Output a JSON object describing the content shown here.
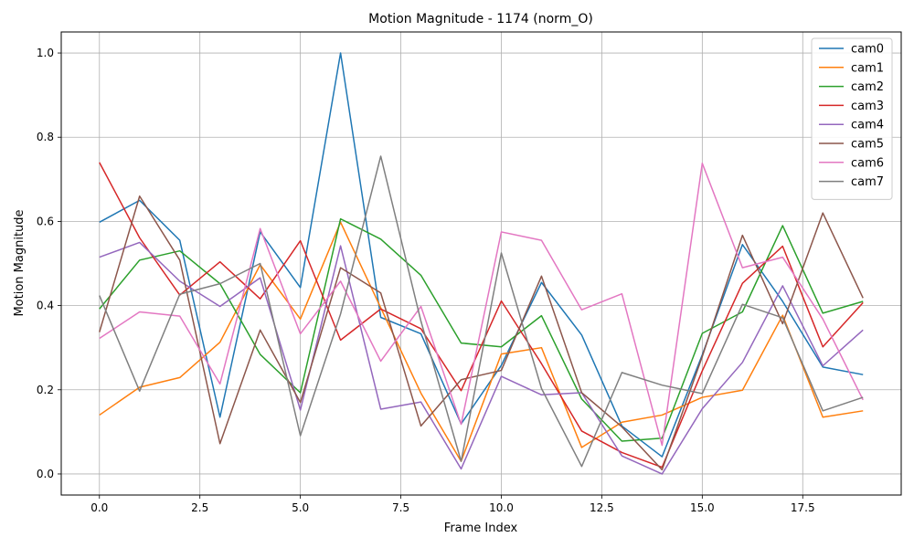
{
  "chart_data": {
    "type": "line",
    "title": "Motion Magnitude - 1174 (norm_O)",
    "xlabel": "Frame Index",
    "ylabel": "Motion Magnitude",
    "xlim": [
      -0.95,
      19.95
    ],
    "ylim": [
      -0.05,
      1.05
    ],
    "grid": true,
    "legend_position": "top-right",
    "x": [
      0,
      1,
      2,
      3,
      4,
      5,
      6,
      7,
      8,
      9,
      10,
      11,
      12,
      13,
      14,
      15,
      16,
      17,
      18,
      19
    ],
    "x_ticks": [
      0,
      2.5,
      5,
      7.5,
      10,
      12.5,
      15,
      17.5
    ],
    "x_tick_labels": [
      "0.0",
      "2.5",
      "5.0",
      "7.5",
      "10.0",
      "12.5",
      "15.0",
      "17.5"
    ],
    "y_ticks": [
      0,
      0.2,
      0.4,
      0.6,
      0.8,
      1.0
    ],
    "y_tick_labels": [
      "0.0",
      "0.2",
      "0.4",
      "0.6",
      "0.8",
      "1.0"
    ],
    "series": [
      {
        "name": "cam0",
        "color": "#1f77b4",
        "values": [
          0.598,
          0.65,
          0.555,
          0.135,
          0.575,
          0.443,
          1.0,
          0.372,
          0.333,
          0.119,
          0.258,
          0.455,
          0.33,
          0.114,
          0.041,
          0.283,
          0.545,
          0.41,
          0.254,
          0.236
        ]
      },
      {
        "name": "cam1",
        "color": "#ff7f0e",
        "values": [
          0.14,
          0.206,
          0.229,
          0.313,
          0.497,
          0.368,
          0.598,
          0.395,
          0.192,
          0.03,
          0.285,
          0.3,
          0.063,
          0.123,
          0.14,
          0.182,
          0.199,
          0.377,
          0.135,
          0.15
        ]
      },
      {
        "name": "cam2",
        "color": "#2ca02c",
        "values": [
          0.392,
          0.508,
          0.53,
          0.452,
          0.284,
          0.193,
          0.606,
          0.558,
          0.472,
          0.311,
          0.302,
          0.376,
          0.178,
          0.078,
          0.085,
          0.334,
          0.385,
          0.59,
          0.382,
          0.41
        ]
      },
      {
        "name": "cam3",
        "color": "#d62728",
        "values": [
          0.74,
          0.561,
          0.425,
          0.504,
          0.416,
          0.554,
          0.318,
          0.392,
          0.345,
          0.198,
          0.411,
          0.262,
          0.102,
          0.051,
          0.016,
          0.245,
          0.453,
          0.541,
          0.302,
          0.407
        ]
      },
      {
        "name": "cam4",
        "color": "#9467bd",
        "values": [
          0.515,
          0.55,
          0.458,
          0.398,
          0.466,
          0.152,
          0.542,
          0.154,
          0.171,
          0.012,
          0.232,
          0.188,
          0.193,
          0.043,
          0.0,
          0.155,
          0.265,
          0.447,
          0.257,
          0.342
        ]
      },
      {
        "name": "cam5",
        "color": "#8c564b",
        "values": [
          0.337,
          0.66,
          0.508,
          0.072,
          0.342,
          0.17,
          0.49,
          0.43,
          0.114,
          0.224,
          0.246,
          0.47,
          0.193,
          0.112,
          0.01,
          0.279,
          0.567,
          0.357,
          0.62,
          0.418
        ]
      },
      {
        "name": "cam6",
        "color": "#e377c2",
        "values": [
          0.322,
          0.385,
          0.375,
          0.214,
          0.583,
          0.333,
          0.458,
          0.268,
          0.398,
          0.118,
          0.575,
          0.555,
          0.39,
          0.428,
          0.068,
          0.738,
          0.49,
          0.515,
          0.368,
          0.176
        ]
      },
      {
        "name": "cam7",
        "color": "#7f7f7f",
        "values": [
          0.424,
          0.197,
          0.427,
          0.452,
          0.5,
          0.091,
          0.38,
          0.755,
          0.363,
          0.03,
          0.525,
          0.203,
          0.018,
          0.241,
          0.211,
          0.191,
          0.403,
          0.371,
          0.15,
          0.182
        ]
      }
    ]
  }
}
